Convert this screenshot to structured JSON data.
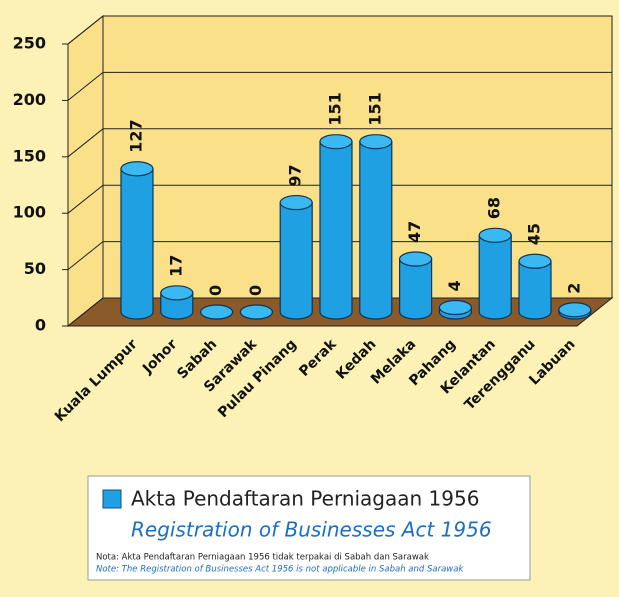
{
  "chart_data": {
    "type": "bar",
    "categories": [
      "Kuala Lumpur",
      "Johor",
      "Sabah",
      "Sarawak",
      "Pulau Pinang",
      "Perak",
      "Kedah",
      "Melaka",
      "Pahang",
      "Kelantan",
      "Terengganu",
      "Labuan"
    ],
    "series": [
      {
        "name": "Akta Pendaftaran Perniagaan 1956",
        "name_translation": "Registration of Businesses Act 1956",
        "color": "#1ea0e2",
        "values": [
          127,
          17,
          0,
          0,
          97,
          151,
          151,
          47,
          4,
          68,
          45,
          2
        ]
      }
    ],
    "ylim": [
      0,
      250
    ],
    "yticks": [
      0,
      50,
      100,
      150,
      200,
      250
    ],
    "grid": true,
    "notes": [
      "Nota: Akta Pendaftaran Perniagaan 1956 tidak terpakai di Sabah dan Sarawak",
      "Note: The Registration of Businesses Act 1956 is not applicable in Sabah and Sarawak"
    ]
  }
}
